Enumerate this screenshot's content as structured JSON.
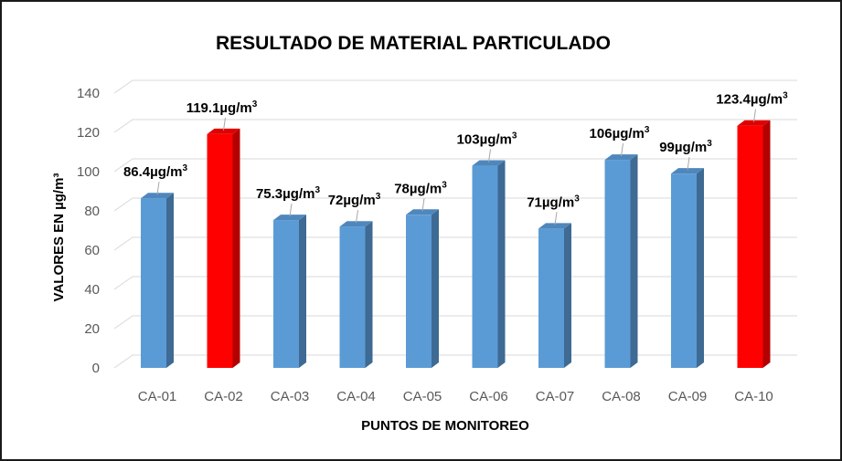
{
  "chart_data": {
    "type": "bar",
    "title": "RESULTADO DE MATERIAL PARTICULADO",
    "xlabel": "PUNTOS DE MONITOREO",
    "ylabel": "VALORES EN µg/m³",
    "ylim": [
      0,
      140
    ],
    "yticks": [
      0,
      20,
      40,
      60,
      80,
      100,
      120,
      140
    ],
    "grid": true,
    "categories": [
      "CA-01",
      "CA-02",
      "CA-03",
      "CA-04",
      "CA-05",
      "CA-06",
      "CA-07",
      "CA-08",
      "CA-09",
      "CA-10"
    ],
    "values": [
      86.4,
      119.1,
      75.3,
      72,
      78,
      103,
      71,
      106,
      99,
      123.4
    ],
    "data_labels": [
      "86.4µg/m",
      "119.1µg/m",
      "75.3µg/m",
      "72µg/m",
      "78µg/m",
      "103µg/m",
      "71µg/m",
      "106µg/m",
      "99µg/m",
      "123.4µg/m"
    ],
    "data_label_sup": "3",
    "highlight": [
      false,
      true,
      false,
      false,
      false,
      false,
      false,
      false,
      false,
      true
    ],
    "colors": {
      "bar": "#5b9bd5",
      "bar_side": "#3e6a94",
      "bar_top": "#4f87bd",
      "highlight": "#ff0000",
      "highlight_side": "#b30000",
      "highlight_top": "#e00000",
      "grid": "#d9d9d9"
    }
  }
}
